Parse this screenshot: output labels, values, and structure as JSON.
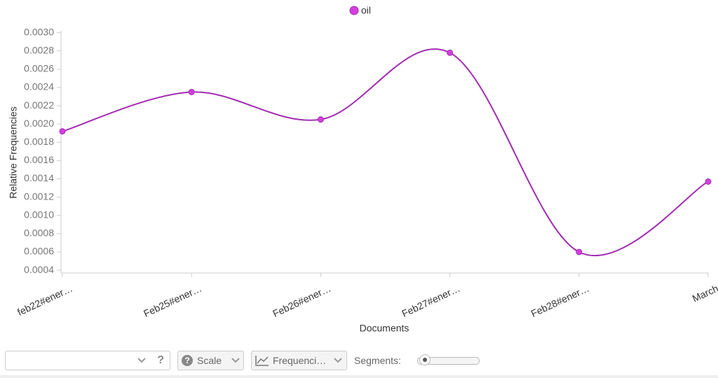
{
  "chart_data": {
    "type": "line",
    "xlabel": "Documents",
    "ylabel": "Relative Frequencies",
    "categories": [
      "feb22#ener…",
      "Feb25#ener…",
      "Feb26#ener…",
      "Feb27#ener…",
      "Feb28#ener…",
      "March"
    ],
    "series": [
      {
        "name": "oil",
        "color": "#a22db2",
        "point_color": "#d63de0",
        "values": [
          0.00192,
          0.00235,
          0.00205,
          0.00278,
          0.0006,
          0.00137
        ]
      }
    ],
    "ylim": [
      0.00037,
      0.00302
    ],
    "yticks": [
      {
        "value": 0.0004,
        "label": "0.0004"
      },
      {
        "value": 0.0006,
        "label": "0.0006"
      },
      {
        "value": 0.0008,
        "label": "0.0008"
      },
      {
        "value": 0.001,
        "label": "0.0010"
      },
      {
        "value": 0.0012,
        "label": "0.0012"
      },
      {
        "value": 0.0014,
        "label": "0.0014"
      },
      {
        "value": 0.0016,
        "label": "0.0016"
      },
      {
        "value": 0.0018,
        "label": "0.0018"
      },
      {
        "value": 0.002,
        "label": "0.0020"
      },
      {
        "value": 0.0022,
        "label": "0.0022"
      },
      {
        "value": 0.0024,
        "label": "0.0024"
      },
      {
        "value": 0.0026,
        "label": "0.0026"
      },
      {
        "value": 0.0028,
        "label": "0.0028"
      },
      {
        "value": 0.003,
        "label": "0.0030"
      }
    ],
    "grid": false,
    "legend": "top"
  },
  "controls": {
    "help": "?",
    "scale": "Scale",
    "frequencies": "Frequenci…",
    "segments": "Segments:"
  }
}
